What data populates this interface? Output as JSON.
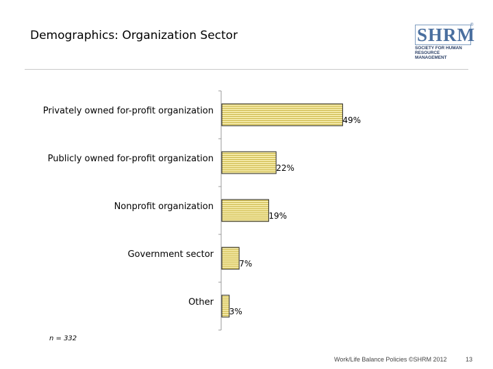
{
  "slide": {
    "title": "Demographics: Organization Sector",
    "sample_note": "n = 332",
    "footer": "Work/Life Balance Policies ©SHRM 2012",
    "page_number": "13"
  },
  "logo": {
    "letters": "SHRM",
    "registered": "®",
    "tagline_line1": "SOCIETY FOR HUMAN",
    "tagline_line2": "RESOURCE MANAGEMENT"
  },
  "colors": {
    "bar_fill": "#f3e9a6",
    "bar_stripe": "#cdb84a",
    "bar_border": "#222222",
    "axis": "#999999",
    "logo_blue": "#4a6f9f"
  },
  "chart_data": {
    "type": "bar",
    "orientation": "horizontal",
    "title": "Demographics: Organization Sector",
    "categories": [
      "Privately owned for-profit organization",
      "Publicly owned for-profit organization",
      "Nonprofit organization",
      "Government sector",
      "Other"
    ],
    "values": [
      49,
      22,
      19,
      7,
      3
    ],
    "data_labels": [
      "49%",
      "22%",
      "19%",
      "7%",
      "3%"
    ],
    "unit": "%",
    "xlim": [
      0,
      100
    ],
    "xlabel": "",
    "ylabel": "",
    "grid": false,
    "legend": "none"
  }
}
